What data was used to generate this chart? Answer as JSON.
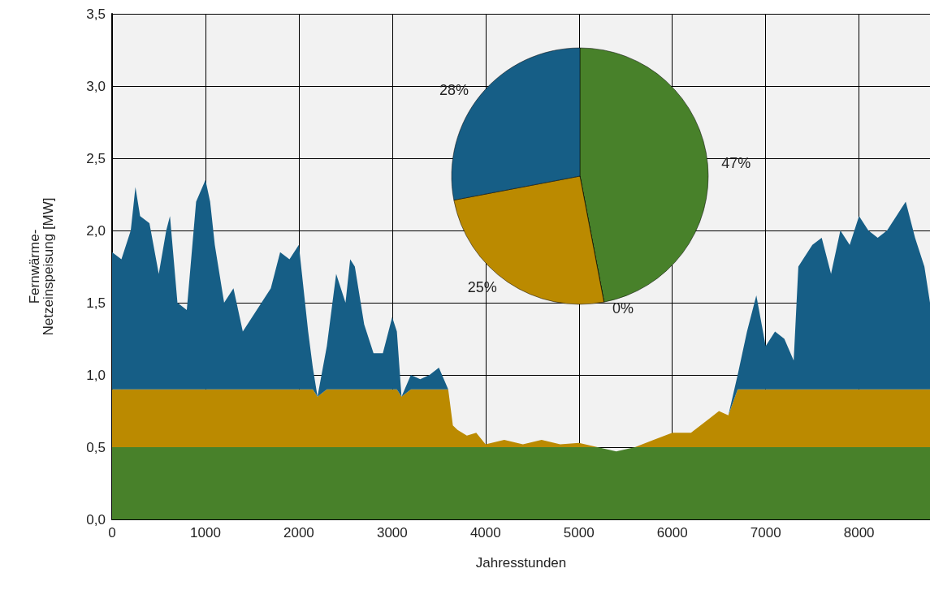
{
  "chart_data": [
    {
      "type": "area",
      "stacked": true,
      "xlabel": "Jahresstunden",
      "ylabel": "Fernwärme-\nNetzeinspeisung [MW]",
      "grid": true,
      "x": [
        0,
        100,
        200,
        250,
        300,
        400,
        500,
        580,
        620,
        700,
        800,
        900,
        1000,
        1050,
        1100,
        1200,
        1300,
        1400,
        1500,
        1600,
        1700,
        1800,
        1900,
        2000,
        2050,
        2100,
        2150,
        2200,
        2300,
        2400,
        2500,
        2550,
        2600,
        2700,
        2800,
        2900,
        3000,
        3050,
        3100,
        3200,
        3300,
        3400,
        3500,
        3600,
        3650,
        3700,
        3800,
        3900,
        4000,
        4200,
        4400,
        4600,
        4800,
        5000,
        5200,
        5400,
        5600,
        5800,
        6000,
        6200,
        6400,
        6500,
        6600,
        6700,
        6800,
        6900,
        7000,
        7100,
        7200,
        7300,
        7350,
        7400,
        7500,
        7600,
        7700,
        7800,
        7900,
        8000,
        8100,
        8200,
        8300,
        8400,
        8500,
        8600,
        8700,
        8760
      ],
      "series": [
        {
          "color": "#48812a",
          "values": [
            0.5,
            0.5,
            0.5,
            0.5,
            0.5,
            0.5,
            0.5,
            0.5,
            0.5,
            0.5,
            0.5,
            0.5,
            0.5,
            0.5,
            0.5,
            0.5,
            0.5,
            0.5,
            0.5,
            0.5,
            0.5,
            0.5,
            0.5,
            0.5,
            0.5,
            0.5,
            0.5,
            0.5,
            0.5,
            0.5,
            0.5,
            0.5,
            0.5,
            0.5,
            0.5,
            0.5,
            0.5,
            0.5,
            0.5,
            0.5,
            0.5,
            0.5,
            0.5,
            0.5,
            0.5,
            0.5,
            0.5,
            0.5,
            0.5,
            0.5,
            0.5,
            0.5,
            0.5,
            0.5,
            0.5,
            0.47,
            0.5,
            0.5,
            0.5,
            0.5,
            0.5,
            0.5,
            0.5,
            0.5,
            0.5,
            0.5,
            0.5,
            0.5,
            0.5,
            0.5,
            0.5,
            0.5,
            0.5,
            0.5,
            0.5,
            0.5,
            0.5,
            0.5,
            0.5,
            0.5,
            0.5,
            0.5,
            0.5,
            0.5,
            0.5,
            0.5
          ]
        },
        {
          "color": "#bb8a00",
          "values": [
            0.4,
            0.4,
            0.4,
            0.4,
            0.4,
            0.4,
            0.4,
            0.4,
            0.4,
            0.4,
            0.4,
            0.4,
            0.4,
            0.4,
            0.4,
            0.4,
            0.4,
            0.4,
            0.4,
            0.4,
            0.4,
            0.4,
            0.4,
            0.4,
            0.4,
            0.4,
            0.4,
            0.35,
            0.4,
            0.4,
            0.4,
            0.4,
            0.4,
            0.4,
            0.4,
            0.4,
            0.4,
            0.4,
            0.35,
            0.4,
            0.4,
            0.4,
            0.4,
            0.4,
            0.15,
            0.12,
            0.08,
            0.1,
            0.02,
            0.05,
            0.02,
            0.05,
            0.02,
            0.03,
            0,
            0,
            0,
            0.05,
            0.1,
            0.1,
            0.2,
            0.25,
            0.22,
            0.4,
            0.4,
            0.4,
            0.4,
            0.4,
            0.4,
            0.4,
            0.4,
            0.4,
            0.4,
            0.4,
            0.4,
            0.4,
            0.4,
            0.4,
            0.4,
            0.4,
            0.4,
            0.4,
            0.4,
            0.4,
            0.4,
            0.4
          ]
        },
        {
          "color": "#165e86",
          "values": [
            0.95,
            0.9,
            1.1,
            1.4,
            1.2,
            1.15,
            0.8,
            1.1,
            1.2,
            0.6,
            0.55,
            1.3,
            1.45,
            1.3,
            1.0,
            0.6,
            0.7,
            0.4,
            0.5,
            0.6,
            0.7,
            0.95,
            0.9,
            1.0,
            0.7,
            0.4,
            0.15,
            0,
            0.3,
            0.8,
            0.6,
            0.9,
            0.85,
            0.45,
            0.25,
            0.25,
            0.5,
            0.4,
            0,
            0.1,
            0.07,
            0.1,
            0.15,
            0,
            0,
            0,
            0,
            0,
            0,
            0,
            0,
            0,
            0,
            0,
            0,
            0,
            0,
            0,
            0,
            0,
            0,
            0,
            0,
            0.1,
            0.4,
            0.65,
            0.3,
            0.4,
            0.35,
            0.2,
            0.85,
            0.9,
            1.0,
            1.05,
            0.8,
            1.1,
            1.0,
            1.2,
            1.1,
            1.05,
            1.1,
            1.2,
            1.3,
            1.05,
            0.85,
            0.6
          ]
        }
      ],
      "xlim": [
        0,
        8760
      ],
      "xticks": [
        0,
        1000,
        2000,
        3000,
        4000,
        5000,
        6000,
        7000,
        8000
      ],
      "ylim": [
        0,
        3.5
      ],
      "yticks": [
        {
          "value": 0,
          "label": "0,0"
        },
        {
          "value": 0.5,
          "label": "0,5"
        },
        {
          "value": 1,
          "label": "1,0"
        },
        {
          "value": 1.5,
          "label": "1,5"
        },
        {
          "value": 2,
          "label": "2,0"
        },
        {
          "value": 2.5,
          "label": "2,5"
        },
        {
          "value": 3,
          "label": "3,0"
        },
        {
          "value": 3.5,
          "label": "3,5"
        }
      ]
    },
    {
      "type": "pie",
      "categories": [
        null,
        null,
        null,
        null
      ],
      "values": [
        47,
        0,
        25,
        28
      ],
      "colors": [
        "#48812a",
        "#000000",
        "#bb8a00",
        "#165e86"
      ],
      "value_labels": [
        "47%",
        "0%",
        "25%",
        "28%"
      ]
    }
  ]
}
